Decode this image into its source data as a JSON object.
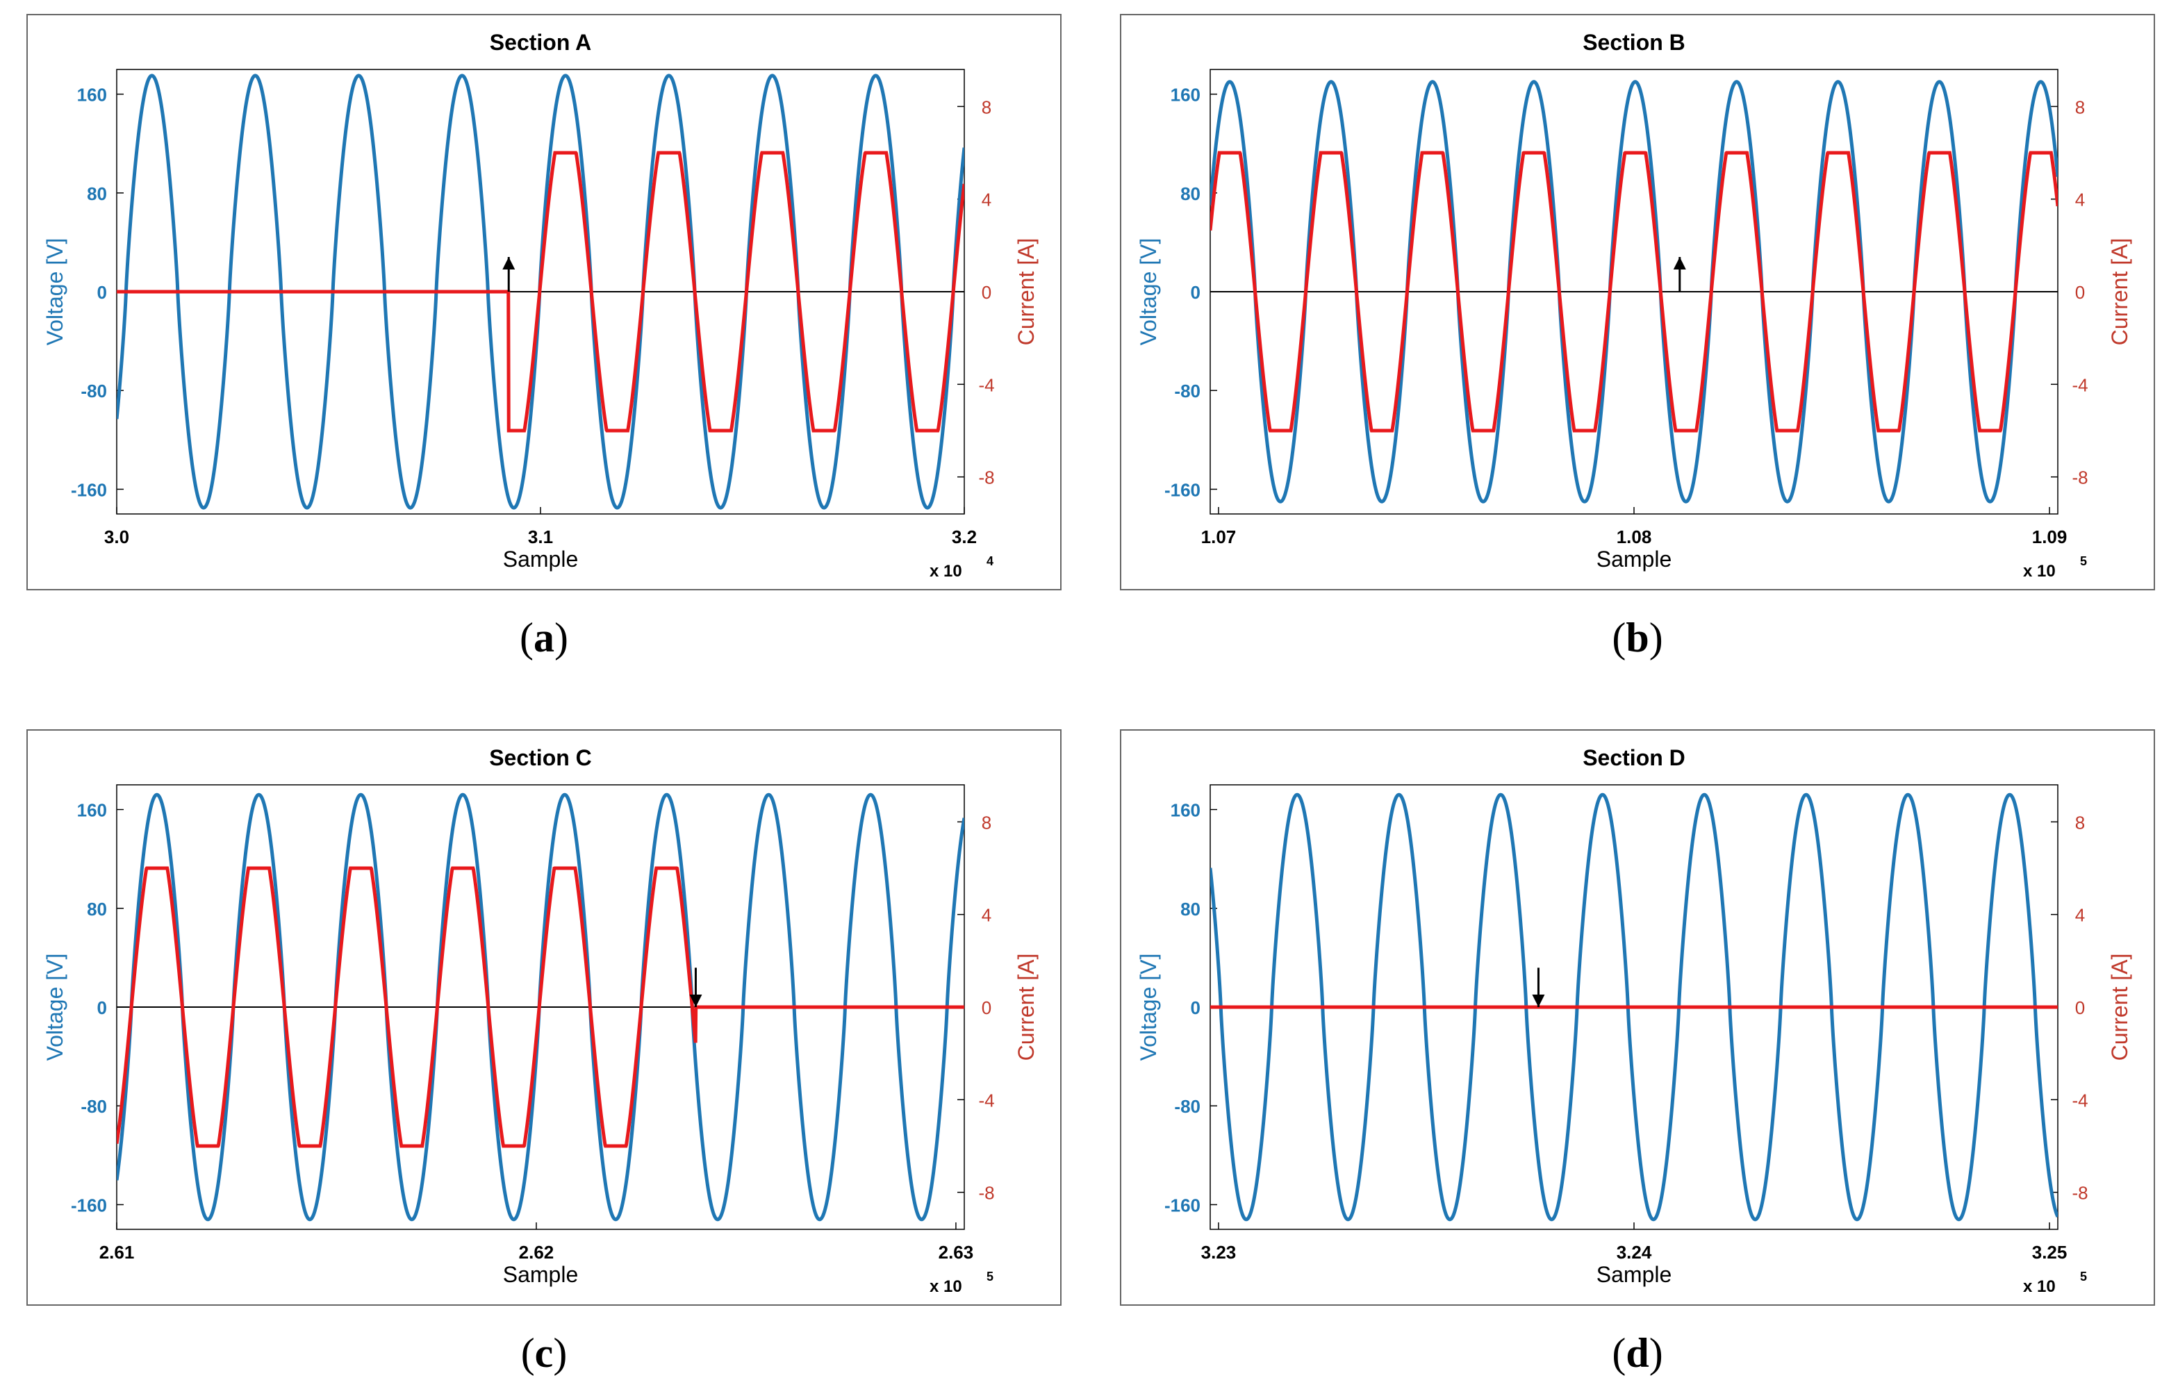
{
  "colors": {
    "voltage": "#1f77b4",
    "current": "#e8191c",
    "current_axis": "#c0392b",
    "axis": "#000000",
    "frame": "#666666"
  },
  "captions": [
    {
      "open": "(",
      "letter": "a",
      "close": ")"
    },
    {
      "open": "(",
      "letter": "b",
      "close": ")"
    },
    {
      "open": "(",
      "letter": "c",
      "close": ")"
    },
    {
      "open": "(",
      "letter": "d",
      "close": ")"
    }
  ],
  "chart_data": [
    {
      "type": "line",
      "title": "Section A",
      "xlabel": "Sample",
      "ylabel_left": "Voltage [V]",
      "ylabel_right": "Current [A]",
      "x_multiplier": "x 10",
      "x_exponent": "4",
      "xlim": [
        3.0,
        3.2
      ],
      "xticks": [
        3.0,
        3.1,
        3.2
      ],
      "xtick_labels": [
        "3.0",
        "3.1",
        "3.2"
      ],
      "ylim_left": [
        -180,
        180
      ],
      "yticks_left": [
        160,
        80,
        0,
        -80,
        -160
      ],
      "ylim_right": [
        -9.6,
        9.6
      ],
      "yticks_right": [
        8,
        4,
        0,
        -4,
        -8
      ],
      "grid": false,
      "series": [
        {
          "name": "Voltage [V]",
          "axis": "left",
          "amplitude": 175,
          "period": 0.0244,
          "phase_x": 3.0022,
          "x_start": 3.0,
          "x_end": 3.2
        },
        {
          "name": "Current [A]",
          "axis": "right",
          "amplitude": 6.0,
          "period": 0.0244,
          "phase_x": 3.0022,
          "on_from": 3.0925,
          "on_until": 3.2,
          "x_start": 3.0,
          "x_end": 3.2
        }
      ],
      "annotations": [
        {
          "type": "arrow",
          "direction": "up",
          "x": 3.0925,
          "y_current_from": 0,
          "y_current_to": 1.5
        }
      ]
    },
    {
      "type": "line",
      "title": "Section B",
      "xlabel": "Sample",
      "ylabel_left": "Voltage [V]",
      "ylabel_right": "Current [A]",
      "x_multiplier": "x 10",
      "x_exponent": "5",
      "xlim": [
        1.0698,
        1.0902
      ],
      "xticks": [
        1.07,
        1.08,
        1.09
      ],
      "xtick_labels": [
        "1.07",
        "1.08",
        "1.09"
      ],
      "ylim_left": [
        -180,
        180
      ],
      "yticks_left": [
        160,
        80,
        0,
        -80,
        -160
      ],
      "ylim_right": [
        -9.6,
        9.6
      ],
      "yticks_right": [
        8,
        4,
        0,
        -4,
        -8
      ],
      "grid": false,
      "series": [
        {
          "name": "Voltage [V]",
          "axis": "left",
          "amplitude": 170,
          "period": 0.00244,
          "phase_x": 1.06966,
          "x_start": 1.0698,
          "x_end": 1.0902
        },
        {
          "name": "Current [A]",
          "axis": "right",
          "amplitude": 6.0,
          "period": 0.00244,
          "phase_x": 1.06966,
          "on_from": 1.0698,
          "on_until": 1.0902,
          "x_start": 1.0698,
          "x_end": 1.0902
        }
      ],
      "annotations": [
        {
          "type": "arrow",
          "direction": "up",
          "x": 1.0811,
          "y_current_from": 0,
          "y_current_to": 1.5
        }
      ]
    },
    {
      "type": "line",
      "title": "Section C",
      "xlabel": "Sample",
      "ylabel_left": "Voltage [V]",
      "ylabel_right": "Current [A]",
      "x_multiplier": "x 10",
      "x_exponent": "5",
      "xlim": [
        2.61,
        2.6302
      ],
      "xticks": [
        2.61,
        2.62,
        2.63
      ],
      "xtick_labels": [
        "2.61",
        "2.62",
        "2.63"
      ],
      "ylim_left": [
        -180,
        180
      ],
      "yticks_left": [
        160,
        80,
        0,
        -80,
        -160
      ],
      "ylim_right": [
        -9.6,
        9.6
      ],
      "yticks_right": [
        8,
        4,
        0,
        -4,
        -8
      ],
      "grid": false,
      "series": [
        {
          "name": "Voltage [V]",
          "axis": "left",
          "amplitude": 172,
          "period": 0.00243,
          "phase_x": 2.61035,
          "x_start": 2.61,
          "x_end": 2.6302
        },
        {
          "name": "Current [A]",
          "axis": "right",
          "amplitude": 6.0,
          "period": 0.00243,
          "phase_x": 2.61035,
          "on_from": 2.61,
          "on_until": 2.6238,
          "x_start": 2.61,
          "x_end": 2.6302
        }
      ],
      "annotations": [
        {
          "type": "arrow",
          "direction": "down",
          "x": 2.6238,
          "y_current_from": 1.7,
          "y_current_to": 0
        }
      ]
    },
    {
      "type": "line",
      "title": "Section D",
      "xlabel": "Sample",
      "ylabel_left": "Voltage [V]",
      "ylabel_right": "Current [A]",
      "x_multiplier": "x 10",
      "x_exponent": "5",
      "xlim": [
        3.2298,
        3.2502
      ],
      "xticks": [
        3.23,
        3.24,
        3.25
      ],
      "xtick_labels": [
        "3.23",
        "3.24",
        "3.25"
      ],
      "ylim_left": [
        -180,
        180
      ],
      "yticks_left": [
        160,
        80,
        0,
        -80,
        -160
      ],
      "ylim_right": [
        -9.6,
        9.6
      ],
      "yticks_right": [
        8,
        4,
        0,
        -4,
        -8
      ],
      "grid": false,
      "series": [
        {
          "name": "Voltage [V]",
          "axis": "left",
          "amplitude": 172,
          "period": 0.00245,
          "phase_x": 3.23128,
          "x_start": 3.2298,
          "x_end": 3.2502
        },
        {
          "name": "Current [A]",
          "axis": "right",
          "amplitude": 0.0,
          "period": 0.00245,
          "phase_x": 3.23128,
          "on_from": 3.2298,
          "on_until": 3.2298,
          "x_start": 3.2298,
          "x_end": 3.2502
        }
      ],
      "annotations": [
        {
          "type": "arrow",
          "direction": "down",
          "x": 3.2377,
          "y_current_from": 1.7,
          "y_current_to": 0
        }
      ]
    }
  ]
}
